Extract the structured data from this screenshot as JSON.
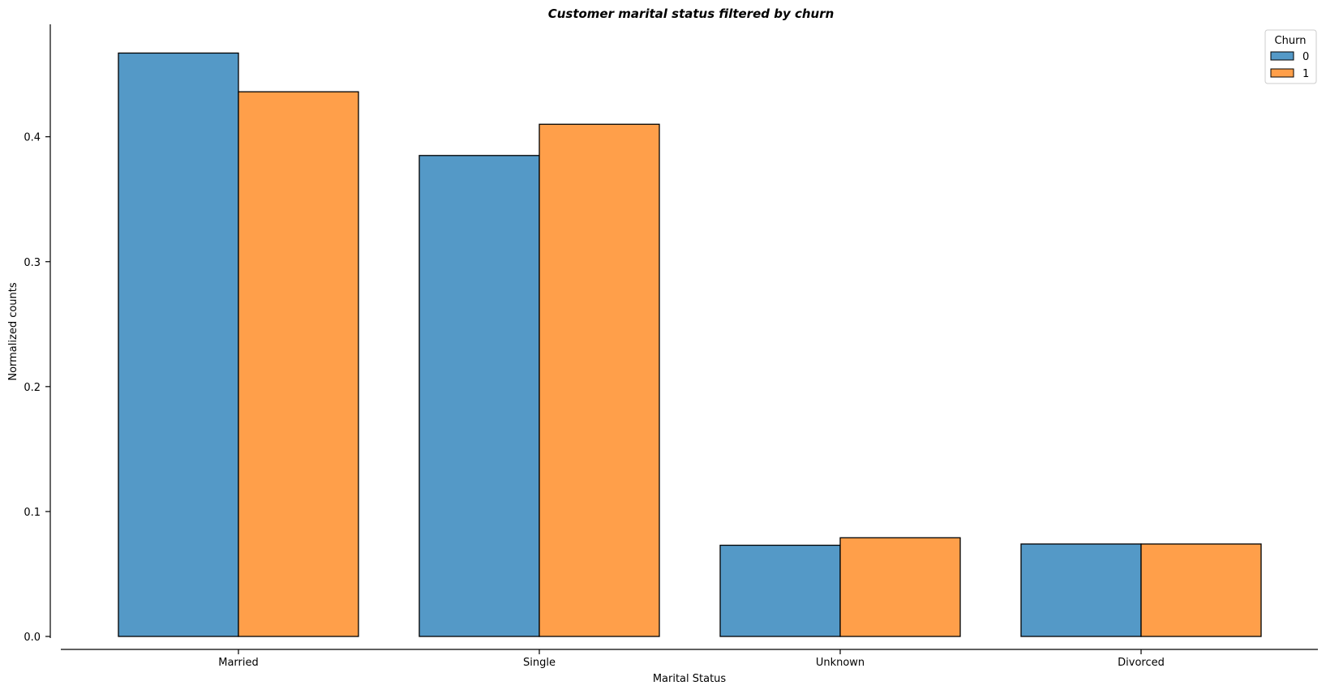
{
  "chart_data": {
    "type": "bar",
    "title": "Customer marital status filtered by churn",
    "xlabel": "Marital Status",
    "ylabel": "Normalized counts",
    "categories": [
      "Married",
      "Single",
      "Unknown",
      "Divorced"
    ],
    "series": [
      {
        "name": "0",
        "values": [
          0.467,
          0.385,
          0.073,
          0.074
        ],
        "color": "#5499c7"
      },
      {
        "name": "1",
        "values": [
          0.436,
          0.41,
          0.079,
          0.074
        ],
        "color": "#ff9f4a"
      }
    ],
    "ylim": [
      0,
      0.49
    ],
    "yticks": [
      0.0,
      0.1,
      0.2,
      0.3,
      0.4
    ],
    "ytick_labels": [
      "0.0",
      "0.1",
      "0.2",
      "0.3",
      "0.4"
    ],
    "grid": false,
    "legend": {
      "title": "Churn",
      "placement": "top-right"
    }
  }
}
